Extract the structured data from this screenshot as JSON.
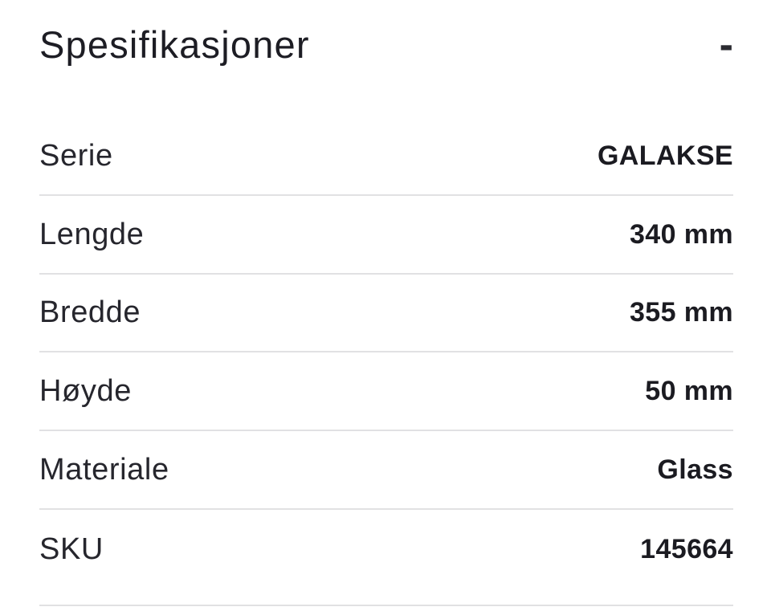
{
  "section": {
    "title": "Spesifikasjoner",
    "toggle_glyph": "-",
    "toggle_icon": "minus-icon"
  },
  "specs": {
    "rows": [
      {
        "label": "Serie",
        "value": "GALAKSE"
      },
      {
        "label": "Lengde",
        "value": "340 mm"
      },
      {
        "label": "Bredde",
        "value": "355 mm"
      },
      {
        "label": "Høyde",
        "value": "50 mm"
      },
      {
        "label": "Materiale",
        "value": "Glass"
      },
      {
        "label": "SKU",
        "value": "145664"
      }
    ]
  },
  "colors": {
    "background": "#ffffff",
    "text": "#1d1d24",
    "divider": "#e1e1e3"
  }
}
